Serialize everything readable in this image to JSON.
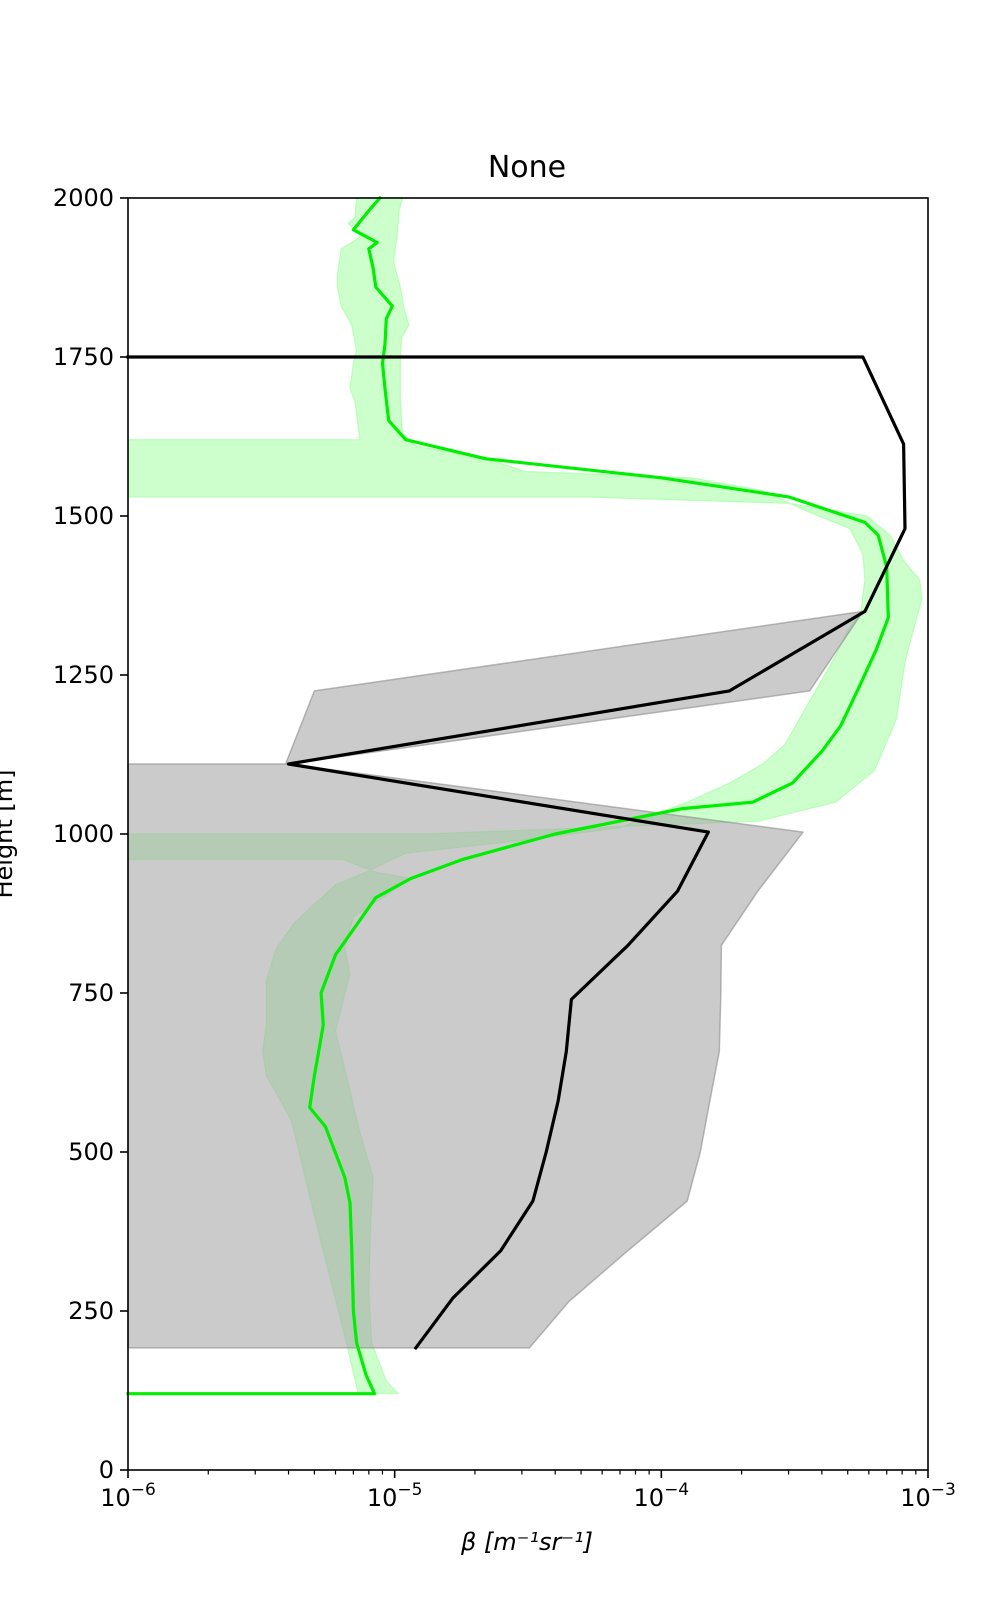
{
  "chart_data": {
    "type": "line",
    "title": "None",
    "xlabel": "β [m⁻¹sr⁻¹]",
    "ylabel": "Height [m]",
    "xscale": "log",
    "xlim": [
      1e-06,
      0.001
    ],
    "ylim": [
      0,
      2000
    ],
    "yticks": [
      0,
      250,
      500,
      750,
      1000,
      1250,
      1500,
      1750,
      2000
    ],
    "xticks": [
      {
        "value": 1e-06,
        "base": "10",
        "exp": "−6"
      },
      {
        "value": 1e-05,
        "base": "10",
        "exp": "−5"
      },
      {
        "value": 0.0001,
        "base": "10",
        "exp": "−4"
      },
      {
        "value": 0.001,
        "base": "10",
        "exp": "−3"
      }
    ],
    "grid": false,
    "legend": "none",
    "colors": {
      "green_line": "#00ee00",
      "green_band": "#99ff99",
      "black_line": "#000000",
      "gray_band": "#a6a6a6"
    },
    "series": [
      {
        "color": "green",
        "points": [
          [
            1e-06,
            120
          ],
          [
            8.4e-06,
            120
          ],
          [
            7.8e-06,
            150
          ],
          [
            7.2e-06,
            200
          ],
          [
            7e-06,
            250
          ],
          [
            6.9e-06,
            350
          ],
          [
            6.8e-06,
            420
          ],
          [
            6.5e-06,
            460
          ],
          [
            5.5e-06,
            540
          ],
          [
            4.8e-06,
            570
          ],
          [
            5e-06,
            620
          ],
          [
            5.2e-06,
            660
          ],
          [
            5.4e-06,
            700
          ],
          [
            5.3e-06,
            750
          ],
          [
            6e-06,
            810
          ],
          [
            7e-06,
            850
          ],
          [
            8.5e-06,
            900
          ],
          [
            1.15e-05,
            930
          ],
          [
            1.8e-05,
            960
          ],
          [
            4e-05,
            1000
          ],
          [
            0.00012,
            1040
          ],
          [
            0.00022,
            1050
          ],
          [
            0.00031,
            1080
          ],
          [
            0.0004,
            1130
          ],
          [
            0.00047,
            1170
          ],
          [
            0.00055,
            1230
          ],
          [
            0.00064,
            1290
          ],
          [
            0.00071,
            1340
          ],
          [
            0.0007,
            1420
          ],
          [
            0.00065,
            1470
          ],
          [
            0.00058,
            1490
          ],
          [
            0.0003,
            1530
          ],
          [
            0.0001,
            1560
          ],
          [
            2.2e-05,
            1590
          ],
          [
            1.1e-05,
            1620
          ],
          [
            9.5e-06,
            1650
          ],
          [
            9.2e-06,
            1700
          ],
          [
            9e-06,
            1740
          ],
          [
            9.2e-06,
            1770
          ],
          [
            9.3e-06,
            1810
          ],
          [
            9.8e-06,
            1830
          ],
          [
            8.5e-06,
            1860
          ],
          [
            8.3e-06,
            1890
          ],
          [
            8e-06,
            1920
          ],
          [
            8.6e-06,
            1930
          ],
          [
            7e-06,
            1950
          ],
          [
            8e-06,
            1980
          ],
          [
            8.8e-06,
            2000
          ]
        ]
      },
      {
        "color": "black",
        "points": [
          [
            1.2e-05,
            192
          ],
          [
            1.65e-05,
            270
          ],
          [
            2.5e-05,
            345
          ],
          [
            3.3e-05,
            423
          ],
          [
            3.7e-05,
            500
          ],
          [
            4.1e-05,
            580
          ],
          [
            4.4e-05,
            658
          ],
          [
            4.6e-05,
            740
          ],
          [
            7.5e-05,
            825
          ],
          [
            0.000115,
            910
          ],
          [
            0.00015,
            1003
          ],
          [
            4e-06,
            1110
          ],
          [
            0.00018,
            1225
          ],
          [
            0.00058,
            1350
          ],
          [
            0.00082,
            1480
          ],
          [
            0.00081,
            1613
          ],
          [
            0.00057,
            1750
          ],
          [
            1e-06,
            1750
          ]
        ]
      }
    ],
    "bands": [
      {
        "color": "green",
        "polygon": [
          [
            1e-06,
            1530
          ],
          [
            5.1e-05,
            1530
          ],
          [
            0.0003,
            1520
          ],
          [
            0.00059,
            1500
          ],
          [
            0.00072,
            1470
          ],
          [
            0.00081,
            1430
          ],
          [
            0.00093,
            1400
          ],
          [
            0.00095,
            1370
          ],
          [
            0.00088,
            1320
          ],
          [
            0.00082,
            1270
          ],
          [
            0.00076,
            1180
          ],
          [
            0.00063,
            1100
          ],
          [
            0.00045,
            1050
          ],
          [
            0.00023,
            1020
          ],
          [
            1.3e-05,
            1000
          ],
          [
            1e-06,
            1000
          ],
          [
            1e-06,
            960
          ],
          [
            6.4e-06,
            960
          ],
          [
            8.5e-06,
            940
          ],
          [
            1.15e-05,
            930
          ],
          [
            9e-06,
            900
          ],
          [
            7e-06,
            870
          ],
          [
            6.5e-06,
            820
          ],
          [
            6.8e-06,
            780
          ],
          [
            6e-06,
            690
          ],
          [
            6.6e-06,
            620
          ],
          [
            7.3e-06,
            540
          ],
          [
            8.3e-06,
            460
          ],
          [
            8.1e-06,
            370
          ],
          [
            8e-06,
            280
          ],
          [
            8.2e-06,
            200
          ],
          [
            9.3e-06,
            140
          ],
          [
            1.03e-05,
            120
          ],
          [
            7.3e-06,
            120
          ],
          [
            6.6e-06,
            200
          ],
          [
            5.9e-06,
            280
          ],
          [
            5e-06,
            400
          ],
          [
            4.5e-06,
            480
          ],
          [
            4.1e-06,
            550
          ],
          [
            3.3e-06,
            620
          ],
          [
            3.2e-06,
            660
          ],
          [
            3.3e-06,
            700
          ],
          [
            3.3e-06,
            770
          ],
          [
            3.6e-06,
            820
          ],
          [
            4.2e-06,
            860
          ],
          [
            5e-06,
            890
          ],
          [
            6e-06,
            920
          ],
          [
            7.8e-06,
            940
          ],
          [
            1.1e-05,
            970
          ],
          [
            3e-05,
            990
          ],
          [
            7e-05,
            1010
          ],
          [
            0.000125,
            1050
          ],
          [
            0.00018,
            1080
          ],
          [
            0.00024,
            1110
          ],
          [
            0.00029,
            1140
          ],
          [
            0.00035,
            1200
          ],
          [
            0.00045,
            1280
          ],
          [
            0.0005,
            1320
          ],
          [
            0.00056,
            1350
          ],
          [
            0.00058,
            1400
          ],
          [
            0.00057,
            1440
          ],
          [
            0.00051,
            1480
          ],
          [
            0.00034,
            1510
          ],
          [
            0.00024,
            1540
          ],
          [
            0.00013,
            1560
          ],
          [
            3.1e-05,
            1570
          ],
          [
            2.2e-05,
            1590
          ],
          [
            1.2e-05,
            1610
          ],
          [
            1.07e-05,
            1630
          ],
          [
            1.05e-05,
            1680
          ],
          [
            1.05e-05,
            1740
          ],
          [
            1.06e-05,
            1780
          ],
          [
            1.13e-05,
            1800
          ],
          [
            1.08e-05,
            1830
          ],
          [
            1.05e-05,
            1860
          ],
          [
            9.9e-06,
            1900
          ],
          [
            1.02e-05,
            1940
          ],
          [
            1.04e-05,
            1980
          ],
          [
            1.07e-05,
            2000
          ],
          [
            7.2e-06,
            2000
          ],
          [
            7.1e-06,
            1970
          ],
          [
            6.7e-06,
            1960
          ],
          [
            7.5e-06,
            1940
          ],
          [
            6.3e-06,
            1920
          ],
          [
            6.1e-06,
            1880
          ],
          [
            6.1e-06,
            1860
          ],
          [
            6.3e-06,
            1830
          ],
          [
            6.9e-06,
            1800
          ],
          [
            7.2e-06,
            1760
          ],
          [
            7e-06,
            1740
          ],
          [
            6.8e-06,
            1700
          ],
          [
            7.1e-06,
            1680
          ],
          [
            7.4e-06,
            1620
          ],
          [
            1e-06,
            1620
          ]
        ]
      },
      {
        "color": "gray",
        "polygon": [
          [
            1e-06,
            1110
          ],
          [
            3.9e-06,
            1110
          ],
          [
            5e-06,
            1225
          ],
          [
            0.00057,
            1350
          ],
          [
            0.00036,
            1225
          ],
          [
            4e-06,
            1110
          ],
          [
            1e-06,
            1110
          ],
          [
            1e-06,
            192
          ],
          [
            3.2e-05,
            192
          ],
          [
            4.5e-05,
            265
          ],
          [
            7.5e-05,
            345
          ],
          [
            0.000125,
            423
          ],
          [
            0.00014,
            500
          ],
          [
            0.000152,
            580
          ],
          [
            0.000165,
            658
          ],
          [
            0.000167,
            740
          ],
          [
            0.000168,
            825
          ],
          [
            0.00023,
            910
          ],
          [
            0.00034,
            1003
          ],
          [
            4e-06,
            1110
          ]
        ]
      }
    ]
  }
}
